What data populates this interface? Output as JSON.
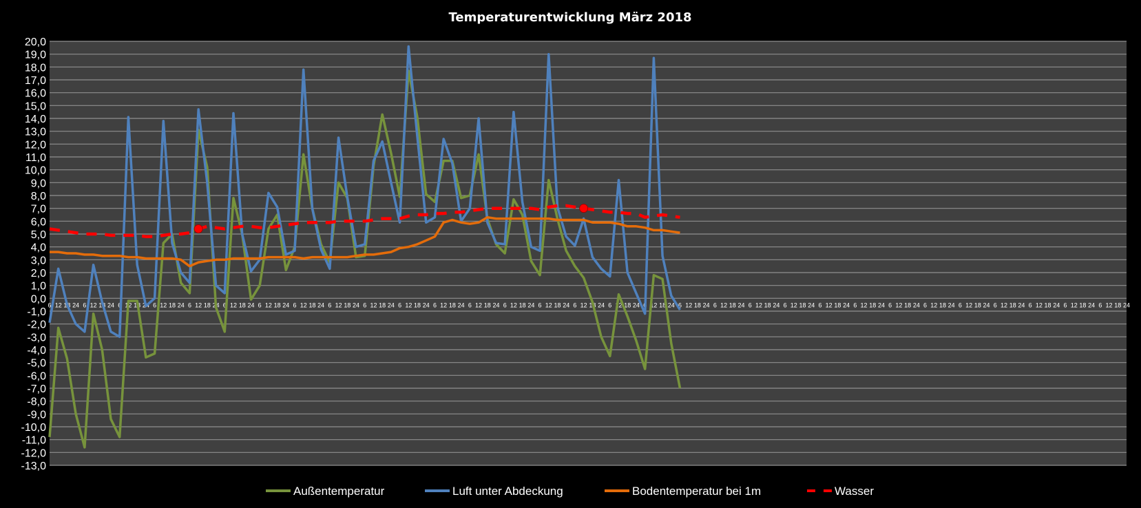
{
  "chart_data": {
    "type": "line",
    "title": "Temperaturentwicklung März 2018",
    "xlabel": "",
    "ylabel": "",
    "ylim": [
      -13,
      20
    ],
    "ytick_step": 1,
    "ytick_labels": [
      "20,0",
      "19,0",
      "18,0",
      "17,0",
      "16,0",
      "15,0",
      "14,0",
      "13,0",
      "12,0",
      "11,0",
      "10,0",
      "9,0",
      "8,0",
      "7,0",
      "6,0",
      "5,0",
      "4,0",
      "3,0",
      "2,0",
      "1,0",
      "0,0",
      "-1,0",
      "-2,0",
      "-3,0",
      "-4,0",
      "-5,0",
      "-6,0",
      "-7,0",
      "-8,0",
      "-9,0",
      "-10,0",
      "-11,0",
      "-12,0",
      "-13,0"
    ],
    "grid": true,
    "legend_position": "bottom",
    "x_labels": [
      "6",
      "12",
      "18",
      "24",
      "6",
      "12",
      "18",
      "24",
      "6",
      "12",
      "18",
      "24",
      "6",
      "12",
      "18",
      "24",
      "6",
      "12",
      "18",
      "24",
      "6",
      "12",
      "18",
      "24",
      "6",
      "12",
      "18",
      "24",
      "6",
      "12",
      "18",
      "24",
      "6",
      "12",
      "18",
      "24",
      "6",
      "12",
      "18",
      "24",
      "6",
      "12",
      "18",
      "24",
      "6",
      "12",
      "18",
      "24",
      "6",
      "12",
      "18",
      "24",
      "6",
      "12",
      "18",
      "24",
      "6",
      "12",
      "18",
      "24",
      "6",
      "12",
      "18",
      "24",
      "6",
      "12",
      "18",
      "24",
      "6",
      "12",
      "18",
      "24",
      "6",
      "12",
      "18",
      "24",
      "6",
      "12",
      "18",
      "24",
      "6",
      "12",
      "18",
      "24",
      "6",
      "12",
      "18",
      "24",
      "6",
      "12",
      "18",
      "24",
      "6",
      "12",
      "18",
      "24",
      "6",
      "12",
      "18",
      "24",
      "6",
      "12",
      "18",
      "24",
      "6",
      "12",
      "18",
      "24",
      "6",
      "12",
      "18",
      "24",
      "6",
      "12",
      "18",
      "24",
      "6",
      "12",
      "18",
      "24",
      "6",
      "12",
      "18",
      "24"
    ],
    "series": [
      {
        "name": "Außentemperatur",
        "color": "#77933c",
        "style": "solid",
        "values": [
          -10.8,
          -2.3,
          -4.7,
          -9.0,
          -11.6,
          -1.2,
          -4.0,
          -9.4,
          -10.8,
          -0.2,
          -0.2,
          -4.6,
          -4.3,
          4.3,
          5.0,
          1.2,
          0.4,
          13.1,
          10.2,
          -0.7,
          -2.6,
          7.8,
          5.0,
          -0.1,
          1.0,
          5.4,
          6.5,
          2.2,
          4.0,
          11.2,
          7.0,
          4.2,
          2.8,
          9.0,
          7.8,
          3.2,
          3.3,
          10.3,
          14.3,
          11.3,
          7.9,
          17.7,
          14.1,
          8.1,
          7.5,
          10.7,
          10.7,
          7.8,
          8.0,
          11.2,
          6.2,
          4.2,
          3.5,
          7.7,
          6.5,
          2.9,
          1.8,
          9.2,
          6.2,
          3.7,
          2.5,
          1.6,
          -0.3,
          -3.0,
          -4.5,
          0.3,
          -1.4,
          -3.3,
          -5.5,
          1.8,
          1.5,
          -3.5,
          -7.0
        ]
      },
      {
        "name": "Luft unter Abdeckung",
        "color": "#4f81bd",
        "style": "solid",
        "values": [
          -1.9,
          2.3,
          -0.5,
          -2.0,
          -2.6,
          2.6,
          -0.3,
          -2.6,
          -3.0,
          14.1,
          2.6,
          -0.6,
          0.0,
          13.8,
          4.3,
          2.0,
          1.2,
          14.7,
          9.0,
          1.0,
          0.4,
          14.4,
          5.0,
          2.1,
          3.0,
          8.2,
          7.1,
          3.4,
          3.7,
          17.8,
          7.0,
          3.8,
          2.3,
          12.5,
          7.9,
          4.0,
          4.2,
          10.7,
          12.2,
          9.0,
          5.9,
          19.6,
          12.6,
          5.9,
          6.3,
          12.4,
          10.5,
          6.0,
          7.0,
          14.0,
          5.9,
          4.3,
          4.2,
          14.5,
          7.5,
          4.0,
          3.7,
          19.0,
          7.1,
          4.8,
          4.1,
          6.2,
          3.2,
          2.3,
          1.7,
          9.2,
          2.0,
          0.4,
          -1.2,
          18.7,
          3.3,
          0.2,
          -0.9
        ]
      },
      {
        "name": "Bodentemperatur bei 1m",
        "color": "#e46c0a",
        "style": "solid",
        "values": [
          3.6,
          3.6,
          3.5,
          3.5,
          3.4,
          3.4,
          3.3,
          3.3,
          3.3,
          3.2,
          3.2,
          3.1,
          3.1,
          3.1,
          3.1,
          3.0,
          2.5,
          2.8,
          2.9,
          3.0,
          3.0,
          3.1,
          3.1,
          3.1,
          3.1,
          3.2,
          3.2,
          3.2,
          3.2,
          3.1,
          3.2,
          3.2,
          3.2,
          3.2,
          3.2,
          3.3,
          3.4,
          3.4,
          3.5,
          3.6,
          3.9,
          4.0,
          4.2,
          4.5,
          4.8,
          5.9,
          6.1,
          5.9,
          5.8,
          5.9,
          6.3,
          6.2,
          6.2,
          6.2,
          6.2,
          6.2,
          6.2,
          6.2,
          6.1,
          6.1,
          6.1,
          6.1,
          5.9,
          5.9,
          5.9,
          5.8,
          5.6,
          5.6,
          5.5,
          5.3,
          5.3,
          5.2,
          5.1
        ]
      },
      {
        "name": "Wasser",
        "color": "#ff0000",
        "style": "dashed",
        "values": [
          5.4,
          5.3,
          5.2,
          5.1,
          5.0,
          5.0,
          5.0,
          4.9,
          4.9,
          4.9,
          4.9,
          4.8,
          4.8,
          4.9,
          5.0,
          5.0,
          5.1,
          5.4,
          5.6,
          5.5,
          5.4,
          5.5,
          5.6,
          5.6,
          5.5,
          5.5,
          5.6,
          5.7,
          5.8,
          5.9,
          5.9,
          5.9,
          5.9,
          6.0,
          6.0,
          6.0,
          6.0,
          6.1,
          6.2,
          6.2,
          6.2,
          6.4,
          6.5,
          6.5,
          6.6,
          6.6,
          6.7,
          6.7,
          6.8,
          6.9,
          7.0,
          7.0,
          7.0,
          7.0,
          7.0,
          7.0,
          6.9,
          7.1,
          7.2,
          7.2,
          7.1,
          7.0,
          6.9,
          6.8,
          6.7,
          6.7,
          6.6,
          6.6,
          6.3,
          6.4,
          6.5,
          6.4,
          6.3
        ],
        "marker_indices": [
          17,
          61
        ]
      }
    ]
  }
}
